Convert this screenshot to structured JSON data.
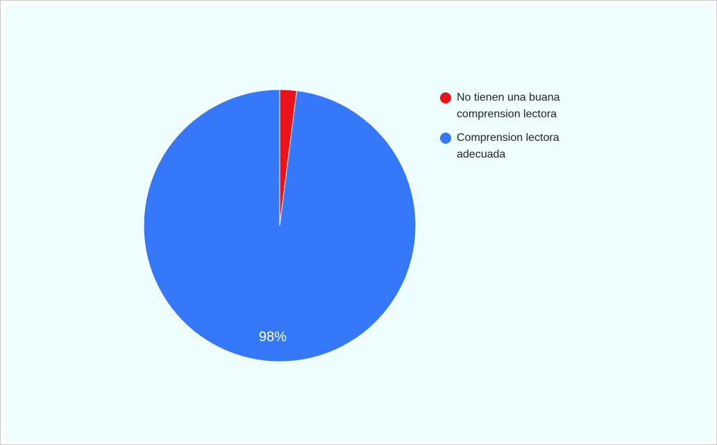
{
  "chart_data": {
    "type": "pie",
    "slices": [
      {
        "label": "No tienen una buana comprension lectora",
        "value": 2,
        "color": "#e8141a"
      },
      {
        "label": "Comprension lectora adecuada",
        "value": 98,
        "color": "#3579fa"
      }
    ],
    "data_labels": {
      "shown": "98%"
    },
    "legend_position": "right",
    "background_color": "#eefdfd"
  }
}
